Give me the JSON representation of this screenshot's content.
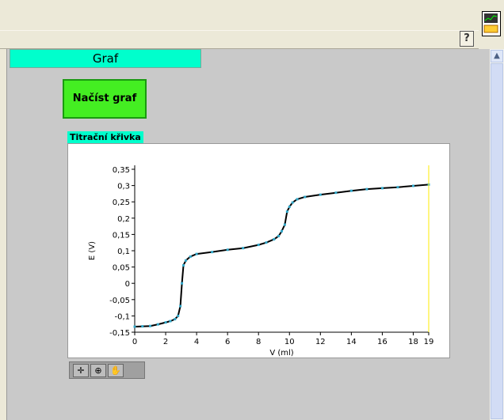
{
  "panel": {
    "section_label": "Graf",
    "load_button_label": "Načíst graf",
    "chart_caption": "Titrační křivka",
    "help_button": "?"
  },
  "palette": {
    "tools": [
      "cursor-cross-icon",
      "zoom-icon",
      "hand-pan-icon"
    ]
  },
  "chart_data": {
    "type": "line",
    "title": "",
    "xlabel": "V (ml)",
    "ylabel": "E (V)",
    "xlim": [
      0,
      19
    ],
    "ylim": [
      -0.15,
      0.35
    ],
    "x_ticks": [
      "0",
      "2",
      "4",
      "6",
      "8",
      "10",
      "12",
      "14",
      "16",
      "18",
      "19"
    ],
    "x_tick_values": [
      0,
      2,
      4,
      6,
      8,
      10,
      12,
      14,
      16,
      18,
      19
    ],
    "y_ticks": [
      "0,35",
      "0,3",
      "0,25",
      "0,2",
      "0,15",
      "0,1",
      "0,05",
      "0",
      "-0,05",
      "-0,1",
      "-0,15"
    ],
    "y_tick_values": [
      0.35,
      0.3,
      0.25,
      0.2,
      0.15,
      0.1,
      0.05,
      0,
      -0.05,
      -0.1,
      -0.15
    ],
    "grid": false,
    "line_color": "#000000",
    "marker_color": "#33aacc",
    "cursor_color": "#ffee00",
    "series": [
      {
        "x": [
          0,
          0.5,
          1,
          1.5,
          2,
          2.3,
          2.6,
          2.8,
          2.95,
          3.05,
          3.15,
          3.3,
          3.6,
          4,
          5,
          6,
          7,
          8,
          8.5,
          9,
          9.3,
          9.5,
          9.7,
          9.85,
          10,
          10.2,
          10.5,
          11,
          12,
          13,
          14,
          15,
          16,
          17,
          18,
          19
        ],
        "y": [
          -0.133,
          -0.132,
          -0.131,
          -0.126,
          -0.12,
          -0.116,
          -0.11,
          -0.1,
          -0.07,
          0.0,
          0.055,
          0.07,
          0.082,
          0.09,
          0.096,
          0.103,
          0.108,
          0.118,
          0.125,
          0.135,
          0.145,
          0.16,
          0.18,
          0.22,
          0.235,
          0.248,
          0.258,
          0.265,
          0.272,
          0.278,
          0.284,
          0.289,
          0.292,
          0.295,
          0.299,
          0.303
        ]
      }
    ]
  }
}
